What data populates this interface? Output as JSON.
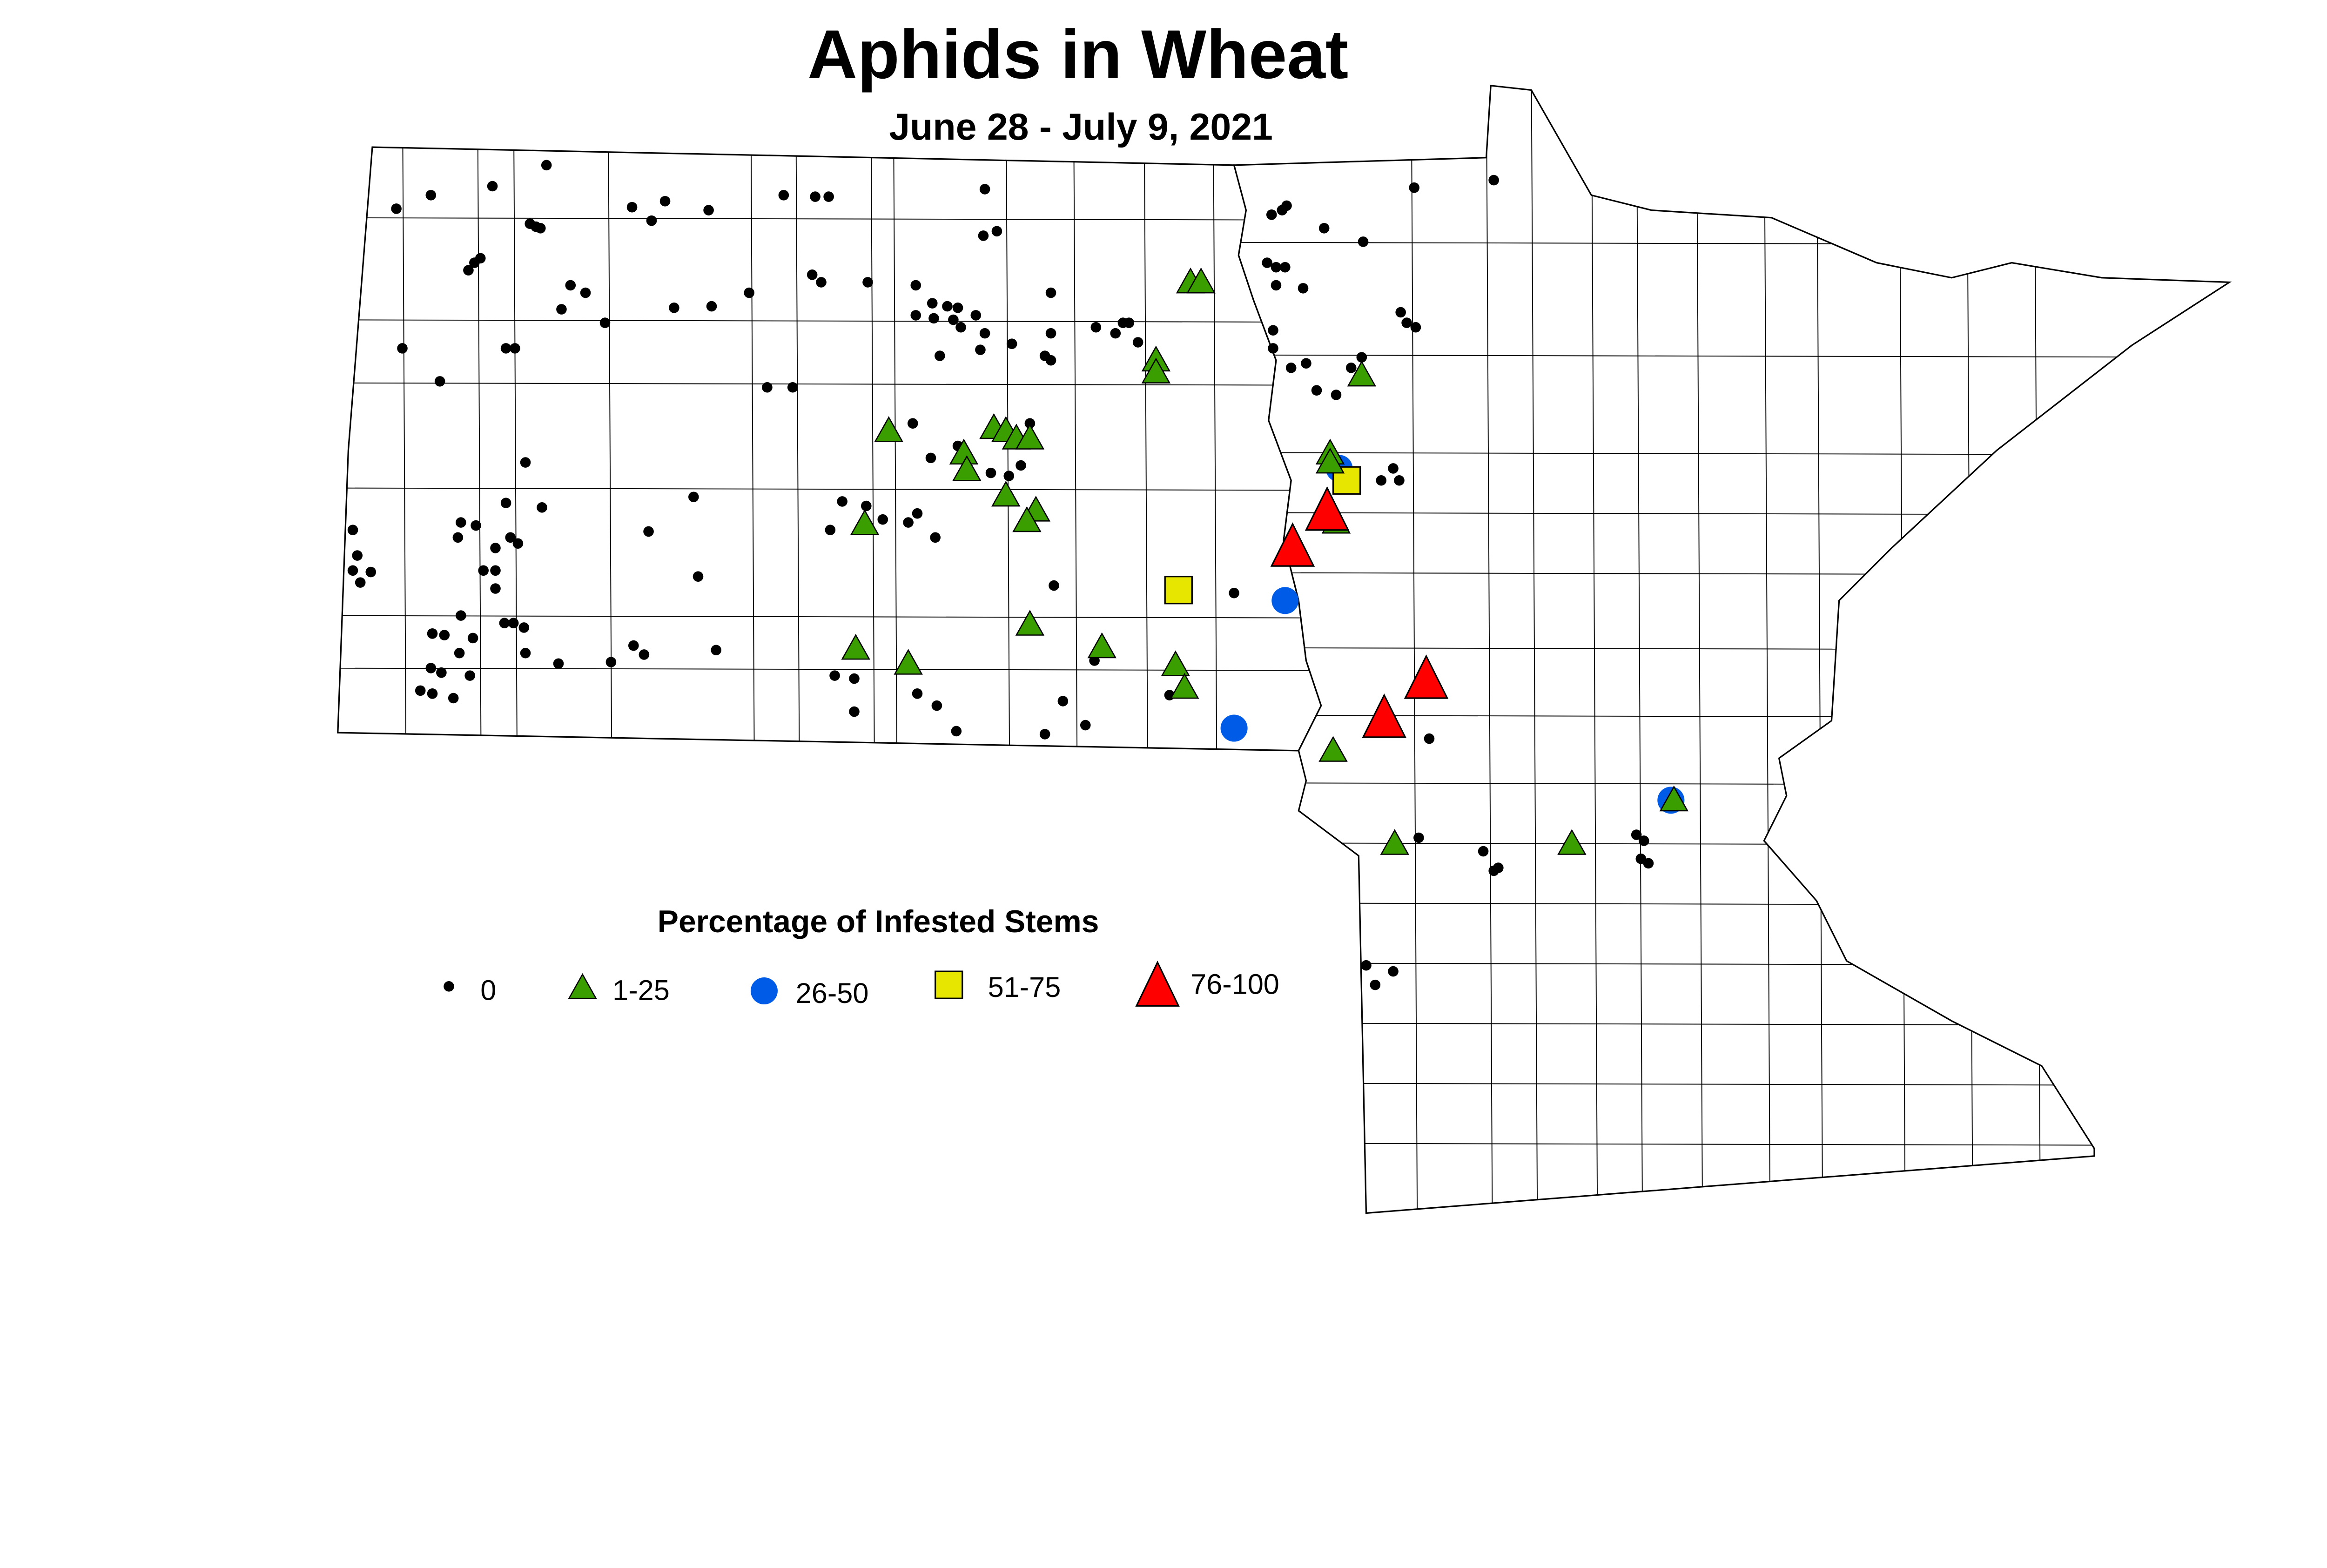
{
  "title": "Aphids in Wheat",
  "subtitle": "June 28 - July 9, 2021",
  "legend": {
    "title": "Percentage of Infested Stems",
    "items": [
      {
        "label": "0",
        "shape": "dot",
        "color": "#000000"
      },
      {
        "label": "1-25",
        "shape": "triangle",
        "color": "#3a9e00"
      },
      {
        "label": "26-50",
        "shape": "circle",
        "color": "#005ce6"
      },
      {
        "label": "51-75",
        "shape": "square",
        "color": "#e6e600"
      },
      {
        "label": "76-100",
        "shape": "triangle-large",
        "color": "#ff0000"
      }
    ]
  }
}
